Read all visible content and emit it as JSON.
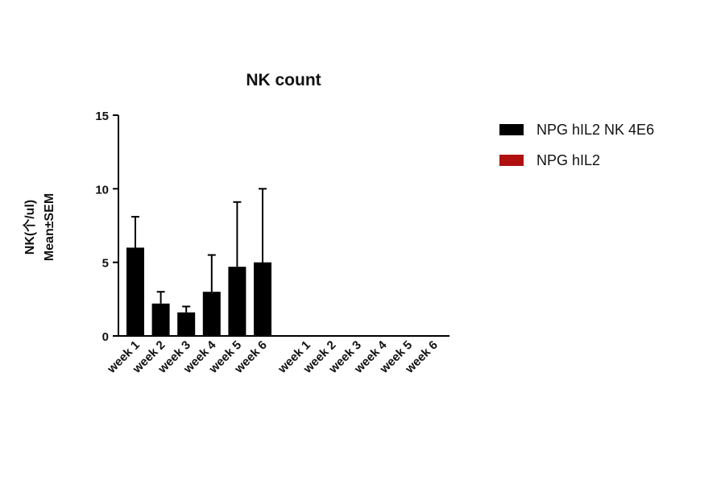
{
  "chart_data": {
    "type": "bar",
    "title": "NK count",
    "y_label": [
      "NK(个/ul)",
      "Mean±SEM"
    ],
    "categories": [
      "week 1",
      "week 2",
      "week 3",
      "week 4",
      "week 5",
      "week 6"
    ],
    "series": [
      {
        "name": "NPG hIL2 NK 4E6",
        "color": "#000000",
        "values": [
          6,
          2.2,
          1.6,
          3,
          4.7,
          5
        ],
        "errors": [
          2.1,
          0.8,
          0.4,
          2.5,
          4.4,
          5
        ]
      },
      {
        "name": "NPG hIL2",
        "color": "#b01010",
        "values": [
          0,
          0,
          0,
          0,
          0,
          0
        ]
      }
    ],
    "ylim": [
      0,
      15
    ],
    "yticks": [
      0,
      5,
      10,
      15
    ],
    "legend": "right"
  }
}
